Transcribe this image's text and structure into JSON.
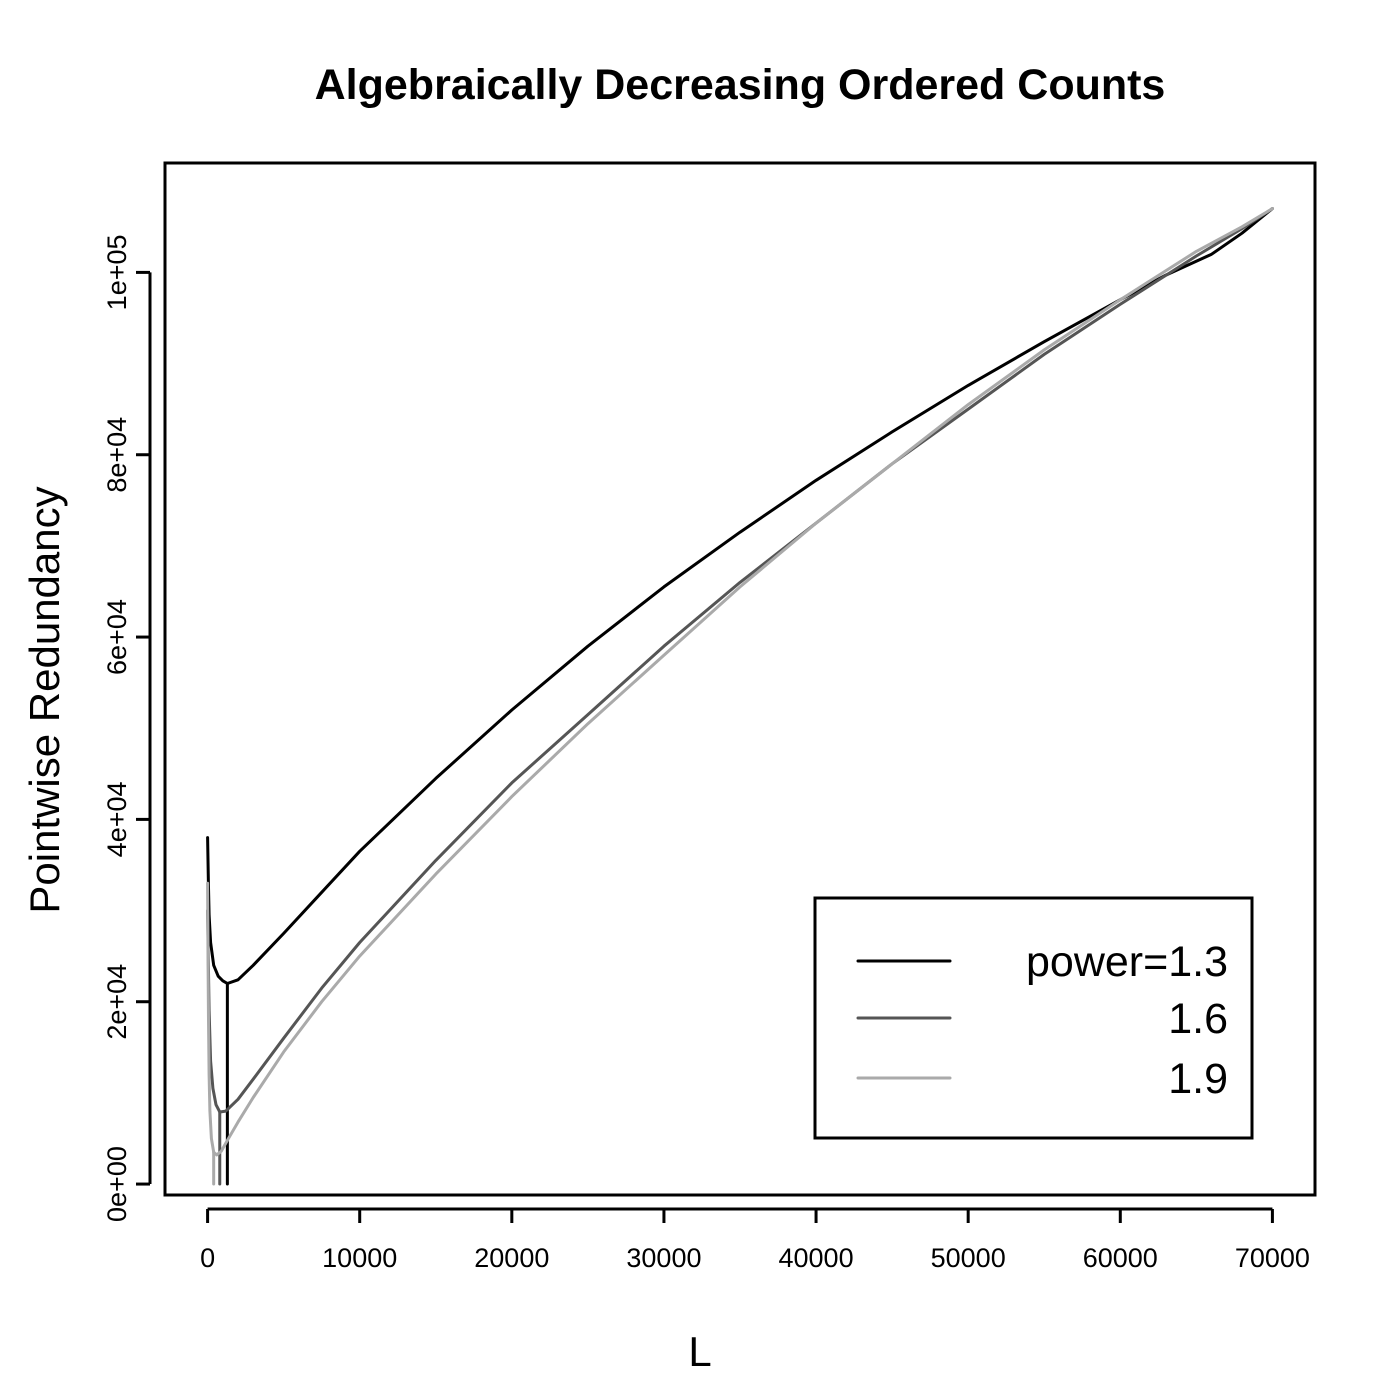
{
  "chart_data": {
    "type": "line",
    "title": "Algebraically Decreasing Ordered Counts",
    "xlabel": "L",
    "ylabel": "Pointwise Redundancy",
    "xlim": [
      -2800,
      72800
    ],
    "ylim": [
      -1200,
      112000
    ],
    "x_ticks": [
      0,
      10000,
      20000,
      30000,
      40000,
      50000,
      60000,
      70000
    ],
    "x_tick_labels": [
      "0",
      "10000",
      "20000",
      "30000",
      "40000",
      "50000",
      "60000",
      "70000"
    ],
    "y_ticks": [
      0,
      20000,
      40000,
      60000,
      80000,
      100000
    ],
    "y_tick_labels": [
      "0e+00",
      "2e+04",
      "4e+04",
      "6e+04",
      "8e+04",
      "1e+05"
    ],
    "legend": {
      "position": "bottom-right",
      "entries": [
        "power=1.3",
        "1.6",
        "1.9"
      ]
    },
    "series": [
      {
        "name": "power=1.3",
        "color": "#000000",
        "x": [
          0,
          50,
          100,
          200,
          400,
          700,
          1000,
          1300,
          2000,
          3000,
          5000,
          7500,
          10000,
          15000,
          20000,
          25000,
          30000,
          35000,
          40000,
          45000,
          50000,
          55000,
          60000,
          63000,
          66000,
          68000,
          70000
        ],
        "y": [
          38000,
          33000,
          29500,
          26500,
          24000,
          22800,
          22300,
          22000,
          22400,
          24000,
          27500,
          32000,
          36500,
          44500,
          52000,
          59000,
          65500,
          71500,
          77200,
          82500,
          87600,
          92400,
          97000,
          99700,
          102000,
          104300,
          107000
        ],
        "drop": {
          "x": 1300,
          "from": 22000,
          "to": 0
        }
      },
      {
        "name": "1.6",
        "color": "#555555",
        "x": [
          0,
          50,
          100,
          200,
          350,
          550,
          800,
          1200,
          2000,
          3000,
          5000,
          7500,
          10000,
          15000,
          20000,
          25000,
          30000,
          35000,
          40000,
          45000,
          50000,
          55000,
          60000,
          65000,
          68000,
          70000
        ],
        "y": [
          30000,
          24000,
          19000,
          13500,
          10500,
          8700,
          7900,
          8000,
          9300,
          11500,
          16000,
          21500,
          26500,
          35500,
          44000,
          51500,
          59000,
          66000,
          72500,
          79000,
          85000,
          91000,
          96500,
          101800,
          104800,
          107000
        ],
        "drop": {
          "x": 800,
          "from": 7900,
          "to": 0
        }
      },
      {
        "name": "1.9",
        "color": "#aaaaaa",
        "x": [
          0,
          30,
          60,
          100,
          150,
          250,
          400,
          600,
          900,
          1300,
          2000,
          3000,
          5000,
          7500,
          10000,
          15000,
          20000,
          25000,
          30000,
          35000,
          40000,
          45000,
          50000,
          55000,
          60000,
          65000,
          68000,
          70000
        ],
        "y": [
          33000,
          25000,
          18000,
          12000,
          8000,
          5000,
          3500,
          3200,
          3600,
          4800,
          6800,
          9500,
          14500,
          20000,
          25000,
          34000,
          42500,
          50500,
          58000,
          65500,
          72500,
          79000,
          85500,
          91500,
          97000,
          102300,
          105000,
          107000
        ],
        "drop": {
          "x": 400,
          "from": 3500,
          "to": 0
        }
      }
    ]
  }
}
